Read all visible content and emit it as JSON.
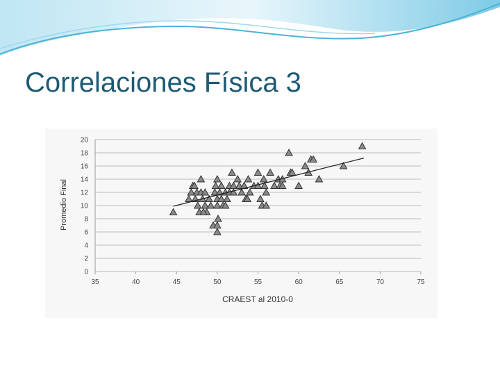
{
  "title": "Correlaciones Física 3",
  "chart_data": {
    "type": "scatter",
    "xlabel": "CRAEST al 2010-0",
    "ylabel": "Promedio Final",
    "x": [
      44.6,
      46.5,
      46.8,
      47,
      47.2,
      47.5,
      47.3,
      47.6,
      47.8,
      48,
      48,
      48.2,
      48.5,
      48.5,
      48.7,
      48.3,
      49,
      49.2,
      49.5,
      49.7,
      49.8,
      50,
      50,
      50,
      50,
      50,
      50.1,
      50.3,
      50.5,
      50.5,
      50.7,
      51,
      51,
      51.2,
      51.5,
      51.5,
      51.8,
      52,
      52,
      52.5,
      52.7,
      53,
      53.3,
      53.5,
      53.7,
      53.8,
      54,
      54.5,
      55,
      55,
      55.3,
      55.5,
      55.7,
      55.8,
      56,
      56,
      56.5,
      57,
      57.5,
      57.7,
      58,
      58,
      58.8,
      59,
      59.2,
      60,
      60.8,
      61.2,
      61.5,
      61.8,
      62.5,
      65.5,
      67.8
    ],
    "values": [
      9,
      11,
      12,
      13,
      13,
      12,
      11,
      10,
      9,
      14,
      12,
      11,
      12,
      10,
      9,
      9,
      11,
      10,
      7,
      12,
      13,
      14,
      11,
      10,
      7,
      6,
      8,
      12,
      13,
      11,
      10,
      12,
      10,
      11,
      13,
      12,
      15,
      13,
      12,
      14,
      13,
      12,
      13,
      11,
      11,
      14,
      12,
      13,
      15,
      13,
      11,
      10,
      14,
      13,
      12,
      10,
      15,
      13,
      14,
      13,
      13,
      14,
      18,
      15,
      15,
      13,
      16,
      15,
      17,
      17,
      14,
      16,
      19
    ],
    "color": "#8a8a8a",
    "trendline": {
      "x": [
        44.6,
        68
      ],
      "values": [
        9.9,
        17.2
      ],
      "color": "#222222"
    },
    "xlim": [
      35,
      75
    ],
    "xticks": [
      35,
      40,
      45,
      50,
      55,
      60,
      65,
      70,
      75
    ],
    "ylim": [
      0,
      20
    ],
    "yticks": [
      0,
      2,
      4,
      6,
      8,
      10,
      12,
      14,
      16,
      18,
      20
    ],
    "grid": true
  }
}
